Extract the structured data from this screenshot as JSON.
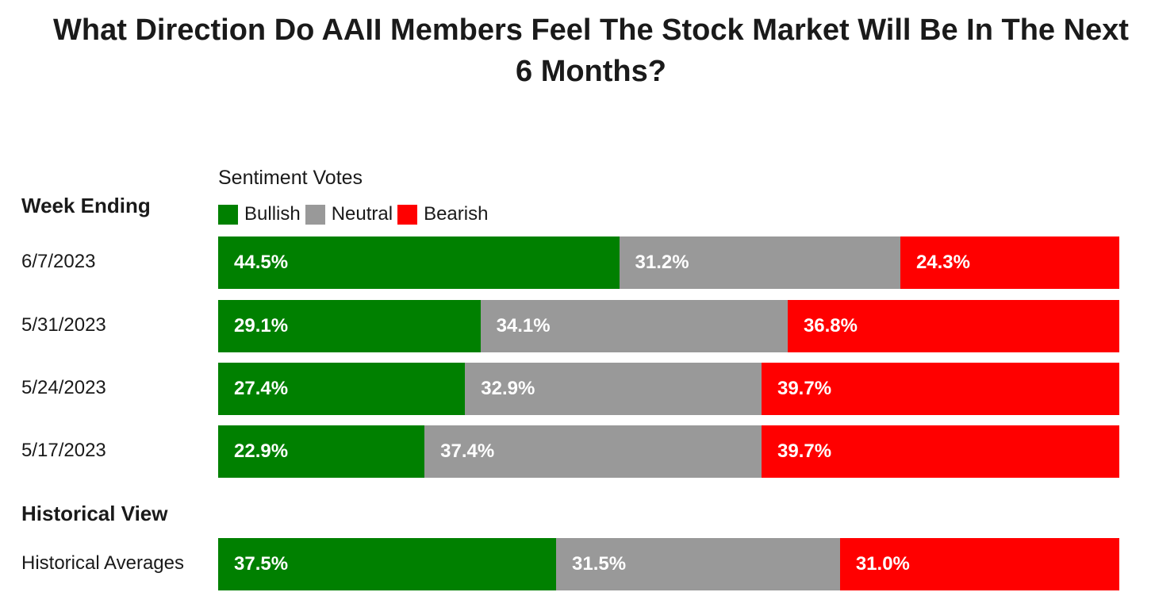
{
  "title_line1": "What Direction Do AAII Members Feel The Stock Market Will Be In The Next",
  "title_line2": "6 Months?",
  "week_ending_label": "Week Ending",
  "historical_view_label": "Historical View",
  "legend_title": "Sentiment Votes",
  "colors": {
    "bullish": "#008000",
    "neutral": "#999999",
    "bearish": "#ff0000"
  },
  "chart_data": {
    "type": "bar",
    "orientation": "horizontal",
    "stacked": true,
    "xlim": [
      0,
      100
    ],
    "unit": "%",
    "categories": [
      "6/7/2023",
      "5/31/2023",
      "5/24/2023",
      "5/17/2023",
      "Historical Averages"
    ],
    "series": [
      {
        "name": "Bullish",
        "values": [
          44.5,
          29.1,
          27.4,
          22.9,
          37.5
        ]
      },
      {
        "name": "Neutral",
        "values": [
          31.2,
          34.1,
          32.9,
          37.4,
          31.5
        ]
      },
      {
        "name": "Bearish",
        "values": [
          24.3,
          36.8,
          39.7,
          39.7,
          31.0
        ]
      }
    ],
    "value_labels": [
      [
        "44.5%",
        "31.2%",
        "24.3%"
      ],
      [
        "29.1%",
        "34.1%",
        "36.8%"
      ],
      [
        "27.4%",
        "32.9%",
        "39.7%"
      ],
      [
        "22.9%",
        "37.4%",
        "39.7%"
      ],
      [
        "37.5%",
        "31.5%",
        "31.0%"
      ]
    ]
  }
}
